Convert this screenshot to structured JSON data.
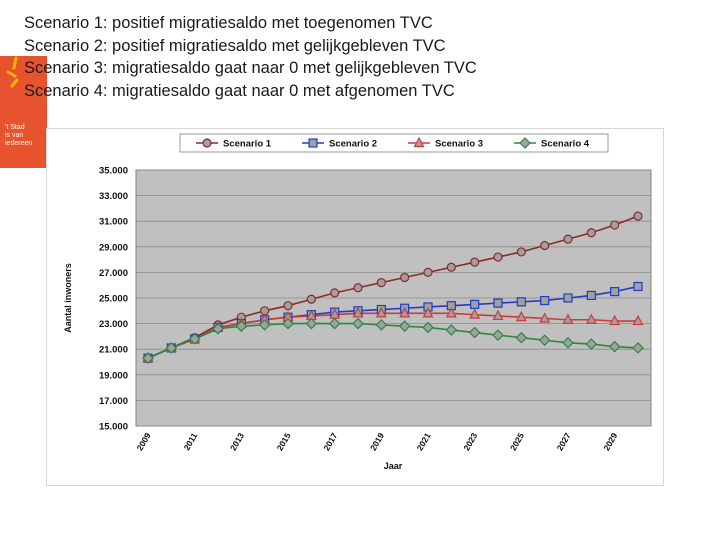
{
  "scenarios": [
    "Scenario 1: positief migratiesaldo met toegenomen TVC",
    "Scenario 2: positief migratiesaldo met gelijkgebleven TVC",
    "Scenario 3: migratiesaldo gaat naar 0 met gelijkgebleven TVC",
    "Scenario 4: migratiesaldo gaat naar 0 met afgenomen TVC"
  ],
  "logo": {
    "lines": [
      "'t Stad",
      "is van",
      "iedereen"
    ],
    "color": "#e8532f"
  },
  "chart_data": {
    "type": "line",
    "xlabel": "Jaar",
    "ylabel": "Aantal inwoners",
    "ylim": [
      15000,
      35000
    ],
    "yticks": [
      35000,
      33000,
      31000,
      29000,
      27000,
      25000,
      23000,
      21000,
      19000,
      17000,
      15000
    ],
    "ytick_labels": [
      "35.000",
      "33.000",
      "31.000",
      "29.000",
      "27.000",
      "25.000",
      "23.000",
      "21.000",
      "19.000",
      "17.000",
      "15.000"
    ],
    "x": [
      2009,
      2010,
      2011,
      2012,
      2013,
      2014,
      2015,
      2016,
      2017,
      2018,
      2019,
      2020,
      2021,
      2022,
      2023,
      2024,
      2025,
      2026,
      2027,
      2028,
      2029,
      2030
    ],
    "xtick_labels": [
      "2009",
      "2011",
      "2013",
      "2015",
      "2017",
      "2019",
      "2021",
      "2023",
      "2025",
      "2027",
      "2029"
    ],
    "legend_position": "top",
    "grid": "horizontal",
    "series": [
      {
        "name": "Scenario 1",
        "color": "#8b2a2a",
        "marker_fill": "#a0a0a0",
        "marker": "circle",
        "values": [
          20300,
          21100,
          21900,
          22900,
          23500,
          24000,
          24400,
          24900,
          25400,
          25800,
          26200,
          26600,
          27000,
          27400,
          27800,
          28200,
          28600,
          29100,
          29600,
          30100,
          30700,
          31400
        ]
      },
      {
        "name": "Scenario 2",
        "color": "#1f3dc8",
        "marker_fill": "#a0a0a0",
        "marker": "square",
        "values": [
          20300,
          21100,
          21800,
          22700,
          23000,
          23300,
          23500,
          23700,
          23900,
          24000,
          24100,
          24200,
          24300,
          24400,
          24500,
          24600,
          24700,
          24800,
          25000,
          25200,
          25500,
          25900
        ]
      },
      {
        "name": "Scenario 3",
        "color": "#d03a3a",
        "marker_fill": "#a0a0a0",
        "marker": "triangle",
        "values": [
          20300,
          21100,
          21800,
          22700,
          23000,
          23300,
          23500,
          23600,
          23700,
          23800,
          23800,
          23800,
          23800,
          23800,
          23700,
          23600,
          23500,
          23400,
          23300,
          23300,
          23200,
          23200
        ]
      },
      {
        "name": "Scenario 4",
        "color": "#2a8a3a",
        "marker_fill": "#a0a0a0",
        "marker": "diamond",
        "values": [
          20300,
          21100,
          21800,
          22600,
          22800,
          22900,
          23000,
          23000,
          23000,
          23000,
          22900,
          22800,
          22700,
          22500,
          22300,
          22100,
          21900,
          21700,
          21500,
          21400,
          21200,
          21100
        ]
      }
    ]
  }
}
